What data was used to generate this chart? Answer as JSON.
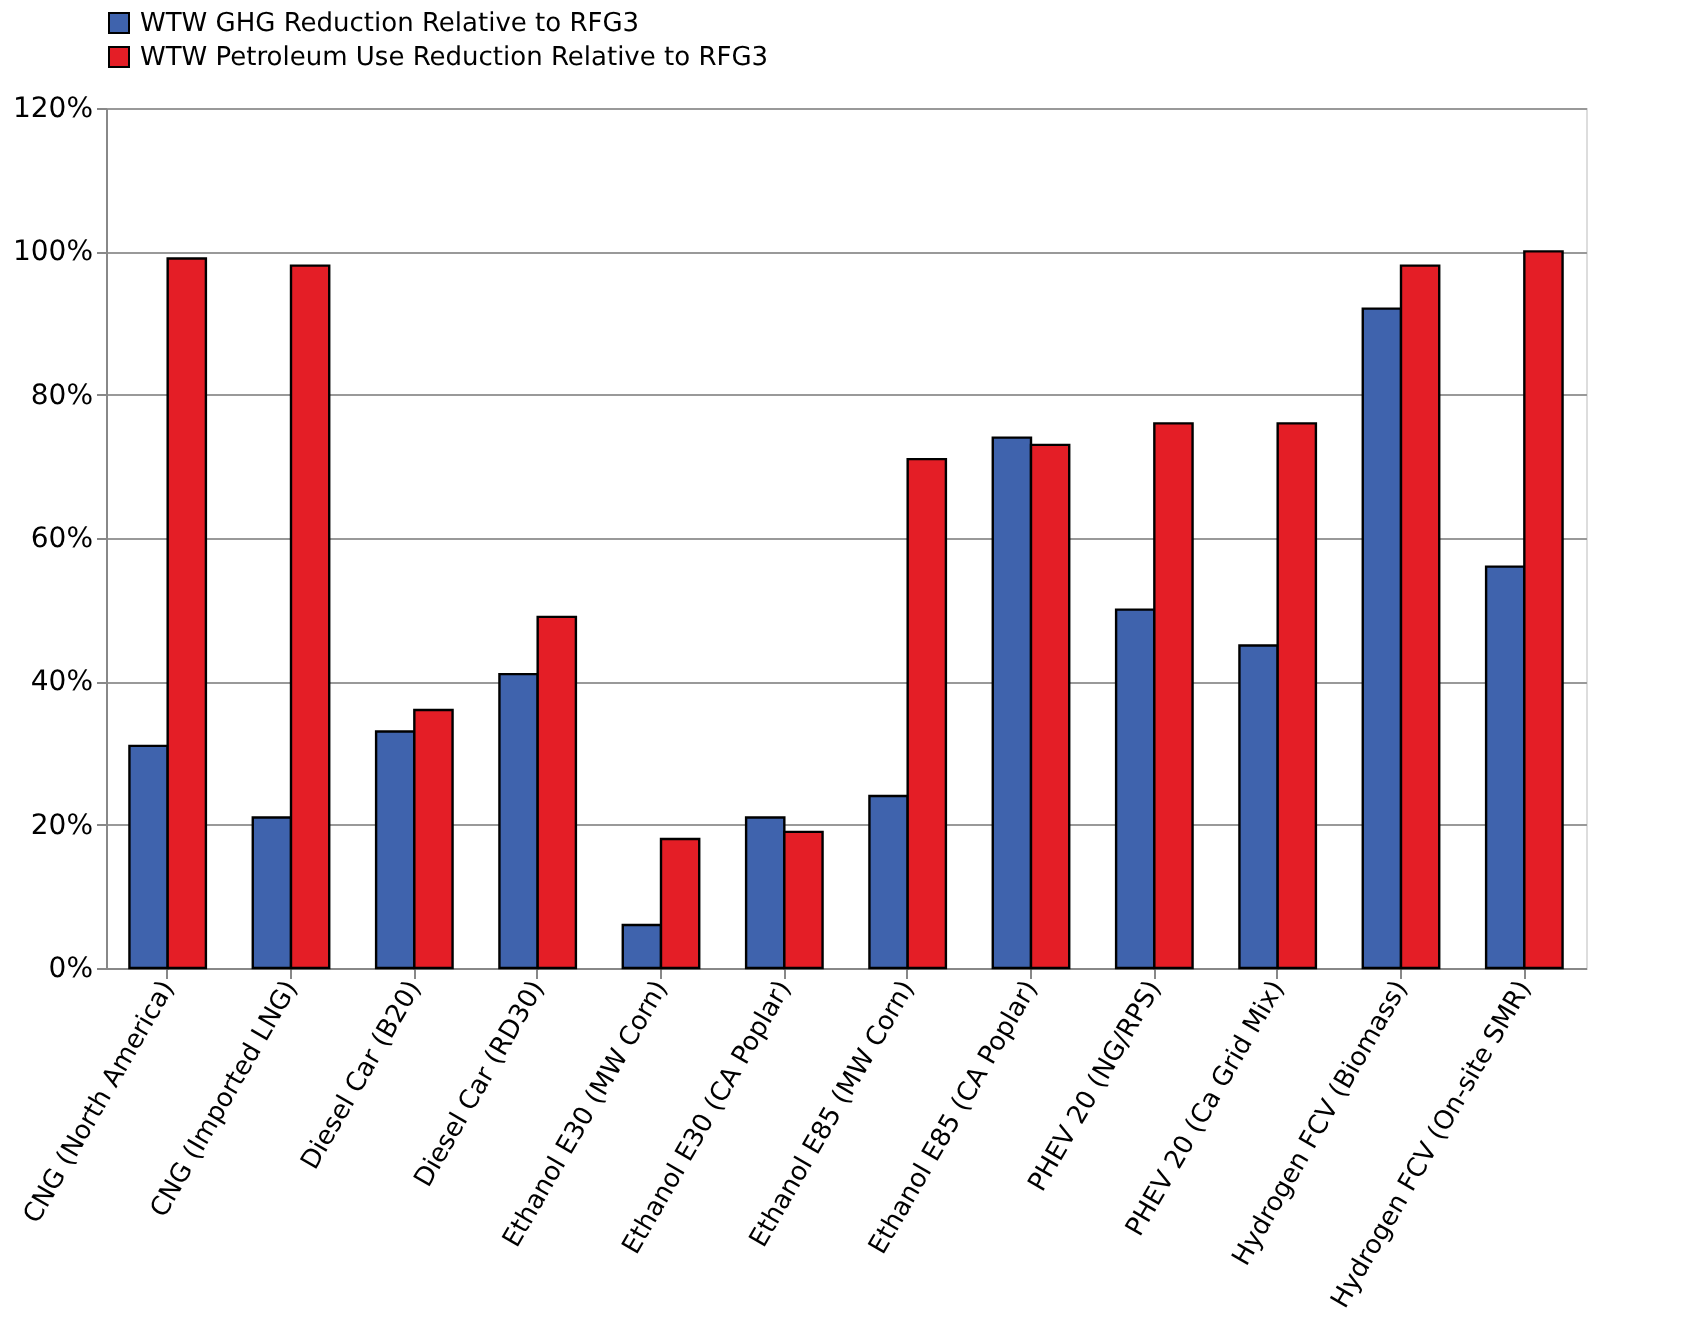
{
  "chart_data": {
    "type": "bar",
    "categories": [
      "CNG (North America)",
      "CNG (Imported LNG)",
      "Diesel Car (B20)",
      "Diesel Car (RD30)",
      "Ethanol E30 (MW Corn)",
      "Ethanol E30 (CA Poplar)",
      "Ethanol E85 (MW Corn)",
      "Ethanol E85 (CA Poplar)",
      "PHEV 20 (NG/RPS)",
      "PHEV 20 (Ca Grid Mix)",
      "Hydrogen FCV (Biomass)",
      "Hydrogen FCV (On-site SMR)"
    ],
    "series": [
      {
        "name": "WTW GHG Reduction Relative to RFG3",
        "color": "#3f63ad",
        "values": [
          31,
          21,
          33,
          41,
          6,
          21,
          24,
          74,
          50,
          45,
          92,
          56
        ]
      },
      {
        "name": "WTW Petroleum Use Reduction Relative to RFG3",
        "color": "#e41e26",
        "values": [
          99,
          98,
          36,
          49,
          18,
          19,
          71,
          73,
          76,
          76,
          98,
          100
        ]
      }
    ],
    "ylim": [
      0,
      120
    ],
    "yticks": [
      {
        "value": 0,
        "label": "0%"
      },
      {
        "value": 20,
        "label": "20%"
      },
      {
        "value": 40,
        "label": "40%"
      },
      {
        "value": 60,
        "label": "60%"
      },
      {
        "value": 80,
        "label": "80%"
      },
      {
        "value": 100,
        "label": "100%"
      },
      {
        "value": 120,
        "label": "120%"
      }
    ],
    "grid": "y",
    "legend": "top"
  }
}
